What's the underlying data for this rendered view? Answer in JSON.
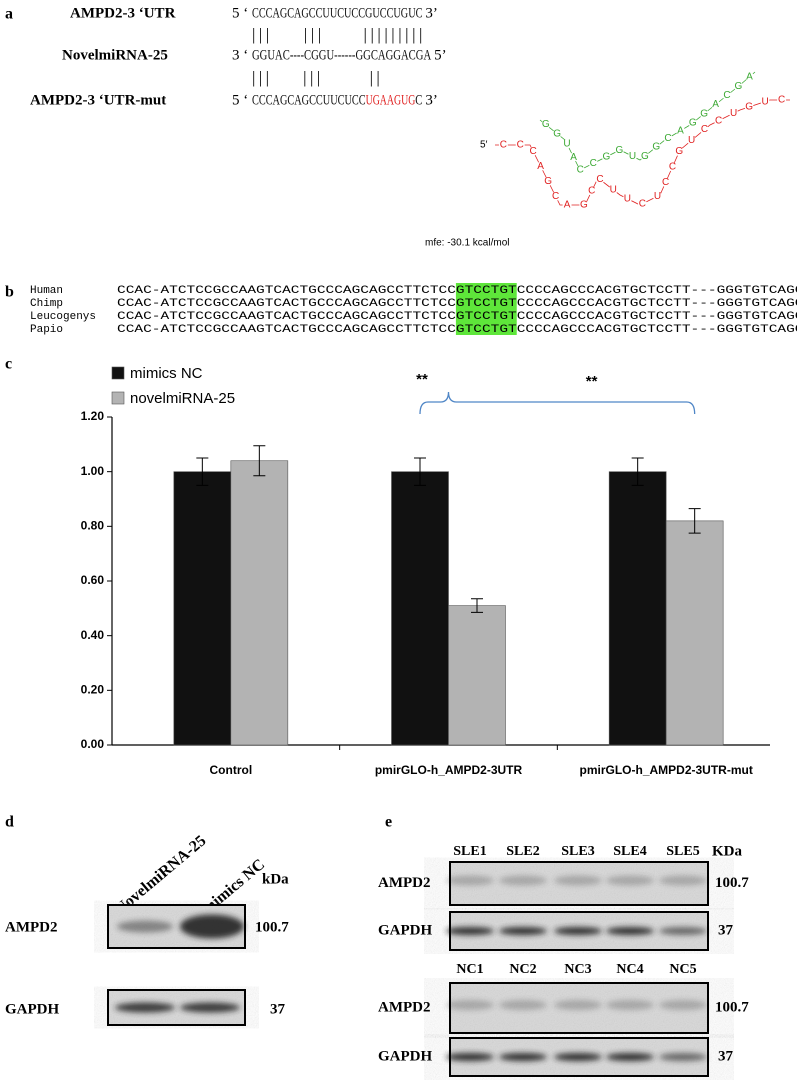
{
  "panel_a": {
    "label": "a",
    "rows": [
      {
        "name": "AMPD2-3 ‘UTR",
        "left": "5 ‘",
        "parts": [
          "CCCAGCAGCCUUCUCCGUCCUGUC"
        ],
        "right": "3’"
      },
      {
        "name": "NovelmiRNA-25",
        "left": "3 ‘",
        "parts": [
          "GGUAC----CGGU------GGCAGGACGA"
        ],
        "right": "5’"
      },
      {
        "name": "AMPD2-3 ‘UTR-mut",
        "left": "5 ‘",
        "parts": [
          "CCCAGCAGCCUUCUCC",
          "UGAAGUG",
          "C"
        ],
        "right": "3’"
      }
    ],
    "pairs": [
      "|||    |||     |||||||||",
      "|||    |||      ||"
    ],
    "structure": {
      "five_prime": "5′",
      "target": "CCCAGCAGCCUUCUCCGUCCUGUC",
      "mirna": "AGCAGGACGGUGGCCAUGG",
      "mfe": "mfe: -30.1 kcal/mol"
    }
  },
  "panel_b": {
    "label": "b",
    "rows": [
      {
        "name": "Human",
        "parts": [
          "CCAC-ATCTCCGCCAAGTCACTGCCCAGCAGCCTTCTCC",
          "GTCCTGT",
          "CCCCAGCCCACGTGCTCCTT---GGGTGTCAGCT"
        ]
      },
      {
        "name": "Chimp",
        "parts": [
          "CCAC-ATCTCCGCCAAGTCACTGCCCAGCAGCCTTCTCC",
          "GTCCTGT",
          "CCCCAGCCCACGTGCTCCTT---GGGTGTCAGCT"
        ]
      },
      {
        "name": "Leucogenys",
        "parts": [
          "CCAC-ATCTCCGCCAAGTCACTGCCCAGCAGCCTTCTCC",
          "GTCCTGT",
          "CCCCAGCCCACGTGCTCCTT---GGGTGTCAGCT"
        ]
      },
      {
        "name": "Papio",
        "parts": [
          "CCAC-ATCTCCGCCAAGTCACTGCCCAGCAGCCTTCTCC",
          "GTCCTGT",
          "CCCCAGCCCACGTGCTCCTT---GGGTGTCAGCT"
        ]
      }
    ]
  },
  "chart_data": {
    "type": "bar",
    "label": "c",
    "categories": [
      "Control",
      "pmirGLO-h_AMPD2-3UTR",
      "pmirGLO-h_AMPD2-3UTR-mut"
    ],
    "series": [
      {
        "name": "mimics NC",
        "color": "#111111",
        "values": [
          1.0,
          1.0,
          1.0
        ],
        "errors": [
          0.05,
          0.05,
          0.05
        ]
      },
      {
        "name": "novelmiRNA-25",
        "color": "#b3b3b3",
        "values": [
          1.04,
          0.51,
          0.82
        ],
        "errors": [
          0.055,
          0.025,
          0.045
        ]
      }
    ],
    "ylim": [
      0,
      1.2
    ],
    "yticks": [
      {
        "value": 0,
        "label": "0.00"
      },
      {
        "value": 0.2,
        "label": "0.20"
      },
      {
        "value": 0.4,
        "label": "0.40"
      },
      {
        "value": 0.6,
        "label": "0.60"
      },
      {
        "value": 0.8,
        "label": "0.80"
      },
      {
        "value": 1,
        "label": "1.00"
      },
      {
        "value": 1.2,
        "label": "1.20"
      }
    ],
    "annotations": [
      "**",
      "**"
    ],
    "legend": "top-left"
  },
  "panel_d": {
    "label": "d",
    "lanes": [
      "NovelmiRNA-25",
      "mimics NC"
    ],
    "unit": "kDa",
    "rows": [
      {
        "name": "AMPD2",
        "size": "100.7"
      },
      {
        "name": "GAPDH",
        "size": "37"
      }
    ]
  },
  "panel_e": {
    "label": "e",
    "unit": "KDa",
    "groups": [
      {
        "lanes": [
          "SLE1",
          "SLE2",
          "SLE3",
          "SLE4",
          "SLE5"
        ],
        "rows": [
          {
            "name": "AMPD2",
            "size": "100.7"
          },
          {
            "name": "GAPDH",
            "size": "37"
          }
        ]
      },
      {
        "lanes": [
          "NC1",
          "NC2",
          "NC3",
          "NC4",
          "NC5"
        ],
        "rows": [
          {
            "name": "AMPD2",
            "size": "100.7"
          },
          {
            "name": "GAPDH",
            "size": "37"
          }
        ]
      }
    ]
  }
}
